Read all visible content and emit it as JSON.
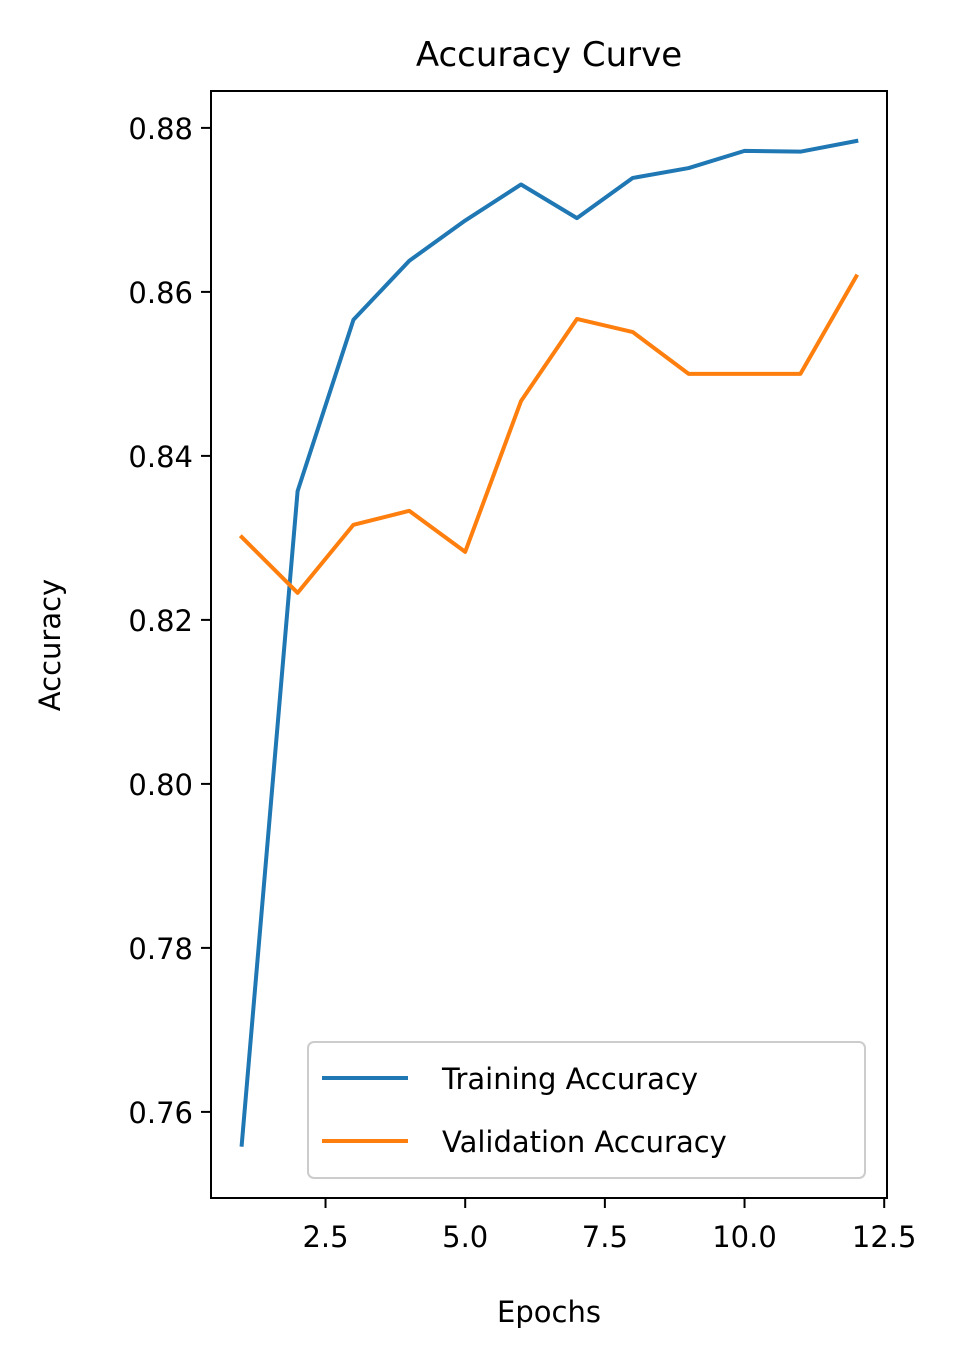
{
  "chart_data": {
    "type": "line",
    "title": "Accuracy Curve",
    "xlabel": "Epochs",
    "ylabel": "Accuracy",
    "xlim": [
      0.45,
      12.55
    ],
    "ylim": [
      0.7495,
      0.8845
    ],
    "xticks": [
      2.5,
      5.0,
      7.5,
      10.0,
      12.5
    ],
    "xtick_labels": [
      "2.5",
      "5.0",
      "7.5",
      "10.0",
      "12.5"
    ],
    "yticks": [
      0.76,
      0.78,
      0.8,
      0.82,
      0.84,
      0.86,
      0.88
    ],
    "ytick_labels": [
      "0.76",
      "0.78",
      "0.80",
      "0.82",
      "0.84",
      "0.86",
      "0.88"
    ],
    "grid": false,
    "legend_position": "lower-right",
    "x": [
      1,
      2,
      3,
      4,
      5,
      6,
      7,
      8,
      9,
      10,
      11,
      12
    ],
    "series": [
      {
        "name": "Training Accuracy",
        "color": "#1f77b4",
        "values": [
          0.756,
          0.8357,
          0.8566,
          0.8638,
          0.8687,
          0.8731,
          0.869,
          0.8739,
          0.8751,
          0.8772,
          0.8771,
          0.8784
        ]
      },
      {
        "name": "Validation Accuracy",
        "color": "#ff7f0e",
        "values": [
          0.8301,
          0.8233,
          0.8316,
          0.8333,
          0.8283,
          0.8467,
          0.8567,
          0.8551,
          0.85,
          0.85,
          0.85,
          0.8619
        ]
      }
    ]
  }
}
